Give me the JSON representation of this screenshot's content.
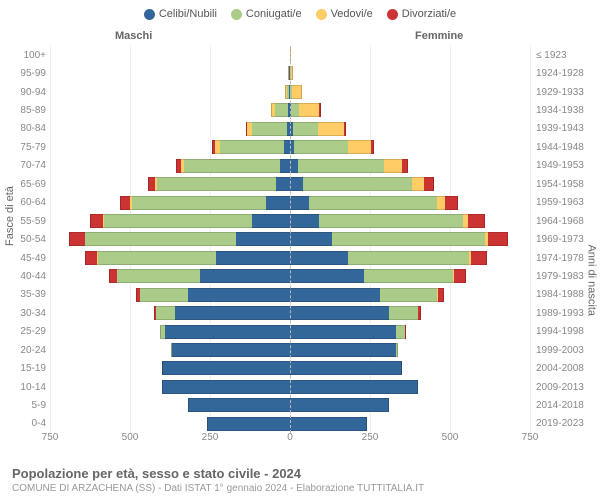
{
  "legend": [
    {
      "label": "Celibi/Nubili",
      "color": "#336699"
    },
    {
      "label": "Coniugati/e",
      "color": "#aacc88"
    },
    {
      "label": "Vedovi/e",
      "color": "#ffcc66"
    },
    {
      "label": "Divorziati/e",
      "color": "#cc3333"
    }
  ],
  "header": {
    "male": "Maschi",
    "female": "Femmine",
    "right": "≤ 1923"
  },
  "axis": {
    "left_title": "Fasce di età",
    "right_title": "Anni di nascita"
  },
  "xmax": 750,
  "xticks_m": [
    750,
    500,
    250,
    0
  ],
  "xticks_f": [
    250,
    500,
    750
  ],
  "footer": {
    "title": "Popolazione per età, sesso e stato civile - 2024",
    "sub": "COMUNE DI ARZACHENA (SS) - Dati ISTAT 1° gennaio 2024 - Elaborazione TUTTITALIA.IT"
  },
  "colors": {
    "celibi": "#336699",
    "coniugati": "#aacc88",
    "vedovi": "#ffcc66",
    "divorziati": "#cc3333",
    "grid": "#eeeeee",
    "center": "#bbbbbb",
    "bg": "#ffffff"
  },
  "rows": [
    {
      "age": "100+",
      "birth": "≤ 1923",
      "m": [
        0,
        0,
        0,
        0
      ],
      "f": [
        0,
        0,
        2,
        0
      ]
    },
    {
      "age": "95-99",
      "birth": "1924-1928",
      "m": [
        2,
        0,
        2,
        0
      ],
      "f": [
        0,
        2,
        6,
        0
      ]
    },
    {
      "age": "90-94",
      "birth": "1929-1933",
      "m": [
        2,
        8,
        6,
        0
      ],
      "f": [
        0,
        6,
        30,
        0
      ]
    },
    {
      "age": "85-89",
      "birth": "1934-1938",
      "m": [
        6,
        40,
        12,
        0
      ],
      "f": [
        2,
        25,
        65,
        4
      ]
    },
    {
      "age": "80-84",
      "birth": "1939-1943",
      "m": [
        10,
        110,
        15,
        4
      ],
      "f": [
        8,
        80,
        80,
        6
      ]
    },
    {
      "age": "75-79",
      "birth": "1944-1948",
      "m": [
        18,
        200,
        18,
        8
      ],
      "f": [
        12,
        170,
        70,
        12
      ]
    },
    {
      "age": "70-74",
      "birth": "1949-1953",
      "m": [
        30,
        300,
        12,
        15
      ],
      "f": [
        25,
        270,
        55,
        20
      ]
    },
    {
      "age": "65-69",
      "birth": "1954-1958",
      "m": [
        45,
        370,
        8,
        20
      ],
      "f": [
        40,
        340,
        40,
        30
      ]
    },
    {
      "age": "60-64",
      "birth": "1959-1963",
      "m": [
        75,
        420,
        6,
        30
      ],
      "f": [
        60,
        400,
        25,
        40
      ]
    },
    {
      "age": "55-59",
      "birth": "1964-1968",
      "m": [
        120,
        460,
        4,
        40
      ],
      "f": [
        90,
        450,
        15,
        55
      ]
    },
    {
      "age": "50-54",
      "birth": "1969-1973",
      "m": [
        170,
        470,
        2,
        50
      ],
      "f": [
        130,
        480,
        10,
        60
      ]
    },
    {
      "age": "45-49",
      "birth": "1974-1978",
      "m": [
        230,
        370,
        2,
        40
      ],
      "f": [
        180,
        380,
        6,
        50
      ]
    },
    {
      "age": "40-44",
      "birth": "1979-1983",
      "m": [
        280,
        260,
        0,
        25
      ],
      "f": [
        230,
        280,
        4,
        35
      ]
    },
    {
      "age": "35-39",
      "birth": "1984-1988",
      "m": [
        320,
        150,
        0,
        10
      ],
      "f": [
        280,
        180,
        2,
        18
      ]
    },
    {
      "age": "30-34",
      "birth": "1989-1993",
      "m": [
        360,
        60,
        0,
        4
      ],
      "f": [
        310,
        90,
        0,
        8
      ]
    },
    {
      "age": "25-29",
      "birth": "1994-1998",
      "m": [
        390,
        15,
        0,
        0
      ],
      "f": [
        330,
        30,
        0,
        2
      ]
    },
    {
      "age": "20-24",
      "birth": "1999-2003",
      "m": [
        370,
        2,
        0,
        0
      ],
      "f": [
        330,
        6,
        0,
        0
      ]
    },
    {
      "age": "15-19",
      "birth": "2004-2008",
      "m": [
        400,
        0,
        0,
        0
      ],
      "f": [
        350,
        0,
        0,
        0
      ]
    },
    {
      "age": "10-14",
      "birth": "2009-2013",
      "m": [
        400,
        0,
        0,
        0
      ],
      "f": [
        400,
        0,
        0,
        0
      ]
    },
    {
      "age": "5-9",
      "birth": "2014-2018",
      "m": [
        320,
        0,
        0,
        0
      ],
      "f": [
        310,
        0,
        0,
        0
      ]
    },
    {
      "age": "0-4",
      "birth": "2019-2023",
      "m": [
        260,
        0,
        0,
        0
      ],
      "f": [
        240,
        0,
        0,
        0
      ]
    }
  ]
}
